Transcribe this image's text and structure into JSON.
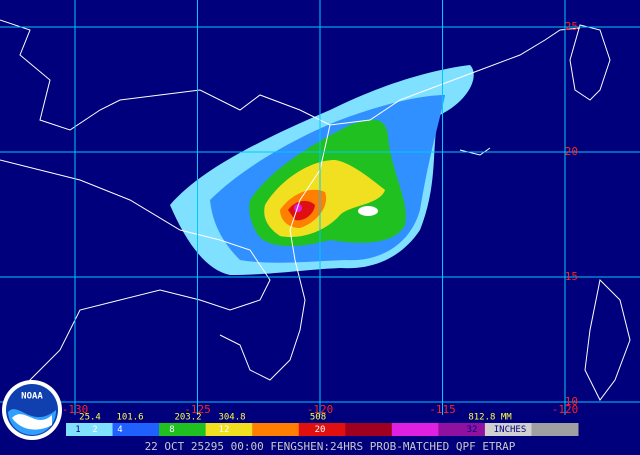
{
  "map": {
    "lat_labels": [
      "25",
      "20",
      "15",
      "10"
    ],
    "lon_labels": [
      "-130",
      "-125",
      "-120",
      "-115",
      "-120"
    ],
    "legend": {
      "mm_labels": [
        "25.4",
        "101.6",
        "203.2",
        "304.8",
        "508",
        "812.8 MM"
      ],
      "inch_labels": [
        "1",
        "2",
        "4",
        "8",
        "12",
        "20",
        "32",
        "INCHES"
      ],
      "colors": [
        "#80e0ff",
        "#2060ff",
        "#20c020",
        "#f0e020",
        "#ff8000",
        "#e01010",
        "#a00020",
        "#e020e0",
        "#9010a0",
        "#d0d0d0",
        "#a0a0a0"
      ]
    },
    "footer": "22 OCT 25295 00:00 FENGSHEN:24HRS PROB-MATCHED QPF ETRAP",
    "logo": "NOAA"
  }
}
